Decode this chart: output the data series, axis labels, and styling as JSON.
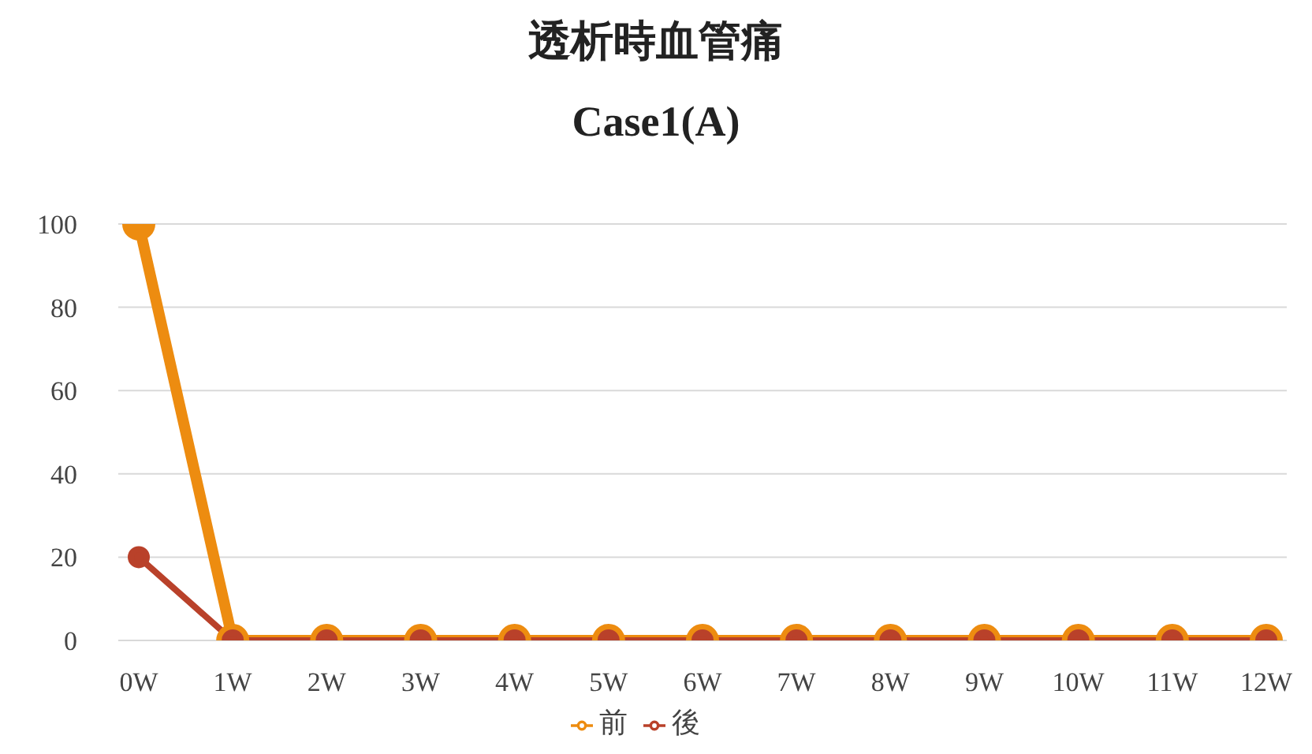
{
  "chart_data": {
    "type": "line",
    "title": "透析時血管痛",
    "subtitle": "Case1(A)",
    "categories": [
      "0W",
      "1W",
      "2W",
      "3W",
      "4W",
      "5W",
      "6W",
      "7W",
      "8W",
      "9W",
      "10W",
      "11W",
      "12W"
    ],
    "series": [
      {
        "name": "前",
        "color": "#ed8c10",
        "values": [
          100,
          0,
          0,
          0,
          0,
          0,
          0,
          0,
          0,
          0,
          0,
          0,
          0
        ]
      },
      {
        "name": "後",
        "color": "#b9412a",
        "values": [
          20,
          0,
          0,
          0,
          0,
          0,
          0,
          0,
          0,
          0,
          0,
          0,
          0
        ]
      }
    ],
    "ylim": [
      0,
      100
    ],
    "yticks": [
      0,
      20,
      40,
      60,
      80,
      100
    ],
    "grid": "y",
    "legend": "bottom",
    "marker": "circle",
    "line_style": "solid"
  }
}
